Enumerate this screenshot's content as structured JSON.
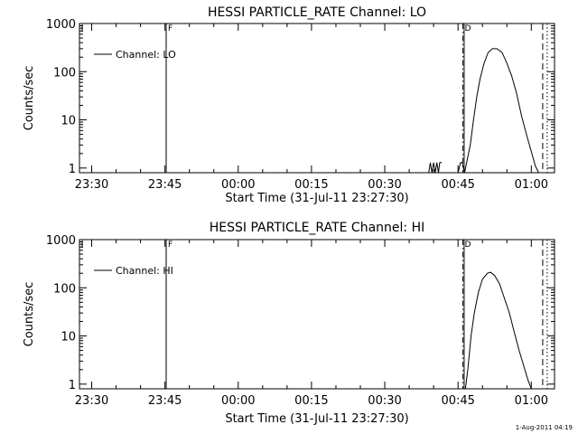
{
  "chart_data": [
    {
      "type": "line",
      "title": "HESSI PARTICLE_RATE Channel: LO",
      "xlabel": "Start Time (31-Jul-11 23:27:30)",
      "ylabel": "Counts/sec",
      "x_tick_labels": [
        "23:30",
        "23:45",
        "00:00",
        "00:15",
        "00:30",
        "00:45",
        "01:00"
      ],
      "y_tick_labels": [
        "1",
        "10",
        "100",
        "1000"
      ],
      "yscale": "log",
      "ylim": [
        0.8,
        1000
      ],
      "legend": {
        "position": "top-left",
        "entries": [
          "Channel: LO"
        ]
      },
      "markers": [
        {
          "label": "F",
          "time": "23:45:15",
          "style": "solid"
        },
        {
          "label": "D",
          "time": "00:46:00",
          "style": "dash-dot"
        }
      ],
      "vlines": [
        {
          "time": "00:46:15",
          "style": "solid"
        },
        {
          "time": "01:02:20",
          "style": "dashed"
        },
        {
          "time": "01:03:15",
          "style": "dotted"
        }
      ],
      "series": [
        {
          "name": "Channel: LO",
          "segments": [
            [
              [
                "00:39:00",
                0.8
              ],
              [
                "00:39:20",
                1.3
              ],
              [
                "00:39:40",
                0.8
              ],
              [
                "00:40:00",
                1.3
              ],
              [
                "00:40:20",
                0.8
              ],
              [
                "00:40:40",
                1.3
              ],
              [
                "00:41:00",
                0.8
              ],
              [
                "00:41:15",
                1.3
              ],
              [
                "00:41:40",
                1.3
              ]
            ],
            [
              [
                "00:45:00",
                0.8
              ],
              [
                "00:45:30",
                1.3
              ],
              [
                "00:45:50",
                1.3
              ],
              [
                "00:46:20",
                0.8
              ],
              [
                "00:47:30",
                3
              ],
              [
                "00:48:10",
                10
              ],
              [
                "00:48:50",
                30
              ],
              [
                "00:49:30",
                70
              ],
              [
                "00:50:20",
                150
              ],
              [
                "00:51:10",
                250
              ],
              [
                "00:52:00",
                300
              ],
              [
                "00:53:00",
                300
              ],
              [
                "00:54:00",
                250
              ],
              [
                "00:55:00",
                150
              ],
              [
                "00:56:00",
                80
              ],
              [
                "00:57:00",
                35
              ],
              [
                "00:58:00",
                12
              ],
              [
                "00:59:00",
                5
              ],
              [
                "01:00:00",
                2.2
              ],
              [
                "01:00:50",
                1.1
              ],
              [
                "01:01:30",
                0.8
              ]
            ]
          ]
        }
      ]
    },
    {
      "type": "line",
      "title": "HESSI PARTICLE_RATE Channel: HI",
      "xlabel": "Start Time (31-Jul-11 23:27:30)",
      "ylabel": "Counts/sec",
      "x_tick_labels": [
        "23:30",
        "23:45",
        "00:00",
        "00:15",
        "00:30",
        "00:45",
        "01:00"
      ],
      "y_tick_labels": [
        "1",
        "10",
        "100",
        "1000"
      ],
      "yscale": "log",
      "ylim": [
        0.8,
        1000
      ],
      "legend": {
        "position": "top-left",
        "entries": [
          "Channel: HI"
        ]
      },
      "markers": [
        {
          "label": "F",
          "time": "23:45:15",
          "style": "solid"
        },
        {
          "label": "D",
          "time": "00:46:00",
          "style": "dash-dot"
        }
      ],
      "vlines": [
        {
          "time": "00:46:15",
          "style": "solid"
        },
        {
          "time": "01:02:20",
          "style": "dashed"
        },
        {
          "time": "01:03:15",
          "style": "dotted"
        }
      ],
      "series": [
        {
          "name": "Channel: HI",
          "segments": [
            [
              [
                "00:46:30",
                0.8
              ],
              [
                "00:47:00",
                2
              ],
              [
                "00:47:40",
                10
              ],
              [
                "00:48:20",
                30
              ],
              [
                "00:49:10",
                80
              ],
              [
                "00:50:00",
                150
              ],
              [
                "00:51:00",
                200
              ],
              [
                "00:51:40",
                210
              ],
              [
                "00:52:30",
                180
              ],
              [
                "00:53:30",
                120
              ],
              [
                "00:54:30",
                60
              ],
              [
                "00:55:30",
                30
              ],
              [
                "00:56:30",
                12
              ],
              [
                "00:57:30",
                5
              ],
              [
                "00:58:30",
                2.3
              ],
              [
                "00:59:20",
                1.2
              ],
              [
                "01:00:00",
                0.8
              ]
            ]
          ]
        }
      ]
    }
  ],
  "footer": {
    "timestamp": "1-Aug-2011 04:19"
  }
}
